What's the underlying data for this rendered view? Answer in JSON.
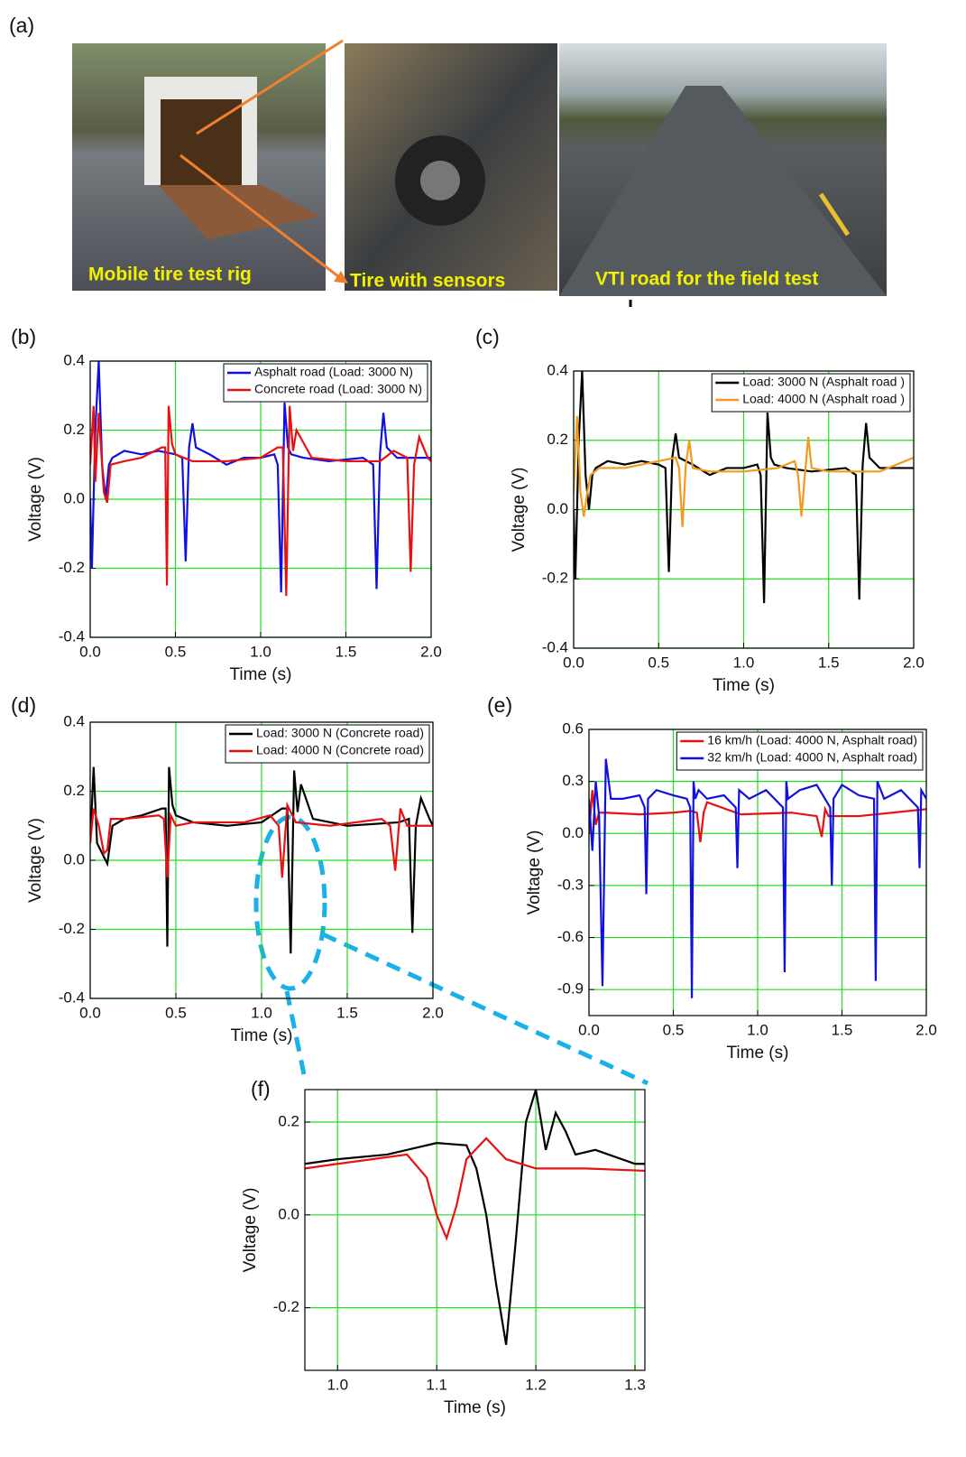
{
  "figure_a": {
    "label": "(a)",
    "captions": [
      "Mobile tire test rig",
      "Tire with sensors",
      "VTI road for the field test"
    ]
  },
  "chart_data": [
    {
      "type": "line",
      "label": "(b)",
      "x_label": "Time (s)",
      "y_label": "Voltage (V)",
      "xlim": [
        0,
        2
      ],
      "ylim": [
        -0.4,
        0.4
      ],
      "xticks": [
        {
          "value": 0,
          "label": "0.0"
        },
        0.5,
        {
          "value": 1,
          "label": "1.0"
        },
        1.5,
        {
          "value": 2,
          "label": "2.0"
        }
      ],
      "yticks": [
        -0.4,
        -0.2,
        {
          "value": 0,
          "label": "0.0"
        },
        0.2,
        0.4
      ],
      "grid": true,
      "legend": "upper right",
      "series": [
        {
          "name": "Asphalt road (Load: 3000 N)",
          "color": "#1010e0",
          "x": [
            0,
            0.01,
            0.03,
            0.05,
            0.07,
            0.09,
            0.11,
            0.13,
            0.2,
            0.3,
            0.4,
            0.5,
            0.54,
            0.56,
            0.58,
            0.6,
            0.62,
            0.7,
            0.8,
            0.9,
            1.0,
            1.08,
            1.1,
            1.12,
            1.14,
            1.16,
            1.18,
            1.25,
            1.4,
            1.6,
            1.66,
            1.68,
            1.7,
            1.72,
            1.74,
            1.8,
            1.9,
            2.0
          ],
          "values": [
            0.0,
            -0.2,
            0.2,
            0.4,
            0.1,
            0.0,
            0.1,
            0.12,
            0.14,
            0.13,
            0.14,
            0.13,
            0.12,
            -0.18,
            0.15,
            0.22,
            0.15,
            0.13,
            0.1,
            0.12,
            0.12,
            0.13,
            0.1,
            -0.27,
            0.28,
            0.15,
            0.13,
            0.12,
            0.11,
            0.12,
            0.1,
            -0.26,
            0.13,
            0.25,
            0.15,
            0.12,
            0.12,
            0.12
          ]
        },
        {
          "name": "Concrete road (Load: 3000 N)",
          "color": "#e81010",
          "x": [
            0,
            0.02,
            0.03,
            0.05,
            0.08,
            0.1,
            0.12,
            0.2,
            0.3,
            0.42,
            0.44,
            0.45,
            0.46,
            0.48,
            0.5,
            0.6,
            0.8,
            1.0,
            1.1,
            1.13,
            1.15,
            1.17,
            1.19,
            1.21,
            1.3,
            1.5,
            1.7,
            1.78,
            1.86,
            1.88,
            1.9,
            1.93,
            1.98,
            2.0
          ],
          "values": [
            0.1,
            0.27,
            0.05,
            0.25,
            0.02,
            -0.01,
            0.1,
            0.11,
            0.12,
            0.15,
            0.15,
            -0.25,
            0.27,
            0.16,
            0.13,
            0.11,
            0.11,
            0.12,
            0.15,
            0.15,
            -0.28,
            0.27,
            0.14,
            0.2,
            0.12,
            0.11,
            0.11,
            0.14,
            0.12,
            -0.21,
            0.1,
            0.18,
            0.12,
            0.11
          ]
        }
      ]
    },
    {
      "type": "line",
      "label": "(c)",
      "x_label": "Time (s)",
      "y_label": "Voltage (V)",
      "xlim": [
        0,
        2
      ],
      "ylim": [
        -0.4,
        0.4
      ],
      "xticks": [
        {
          "value": 0,
          "label": "0.0"
        },
        0.5,
        {
          "value": 1,
          "label": "1.0"
        },
        1.5,
        {
          "value": 2,
          "label": "2.0"
        }
      ],
      "yticks": [
        -0.4,
        -0.2,
        {
          "value": 0,
          "label": "0.0"
        },
        0.2,
        0.4
      ],
      "grid": true,
      "legend": "upper right",
      "series": [
        {
          "name": "Load: 3000 N (Asphalt road )",
          "color": "#000000",
          "x": [
            0,
            0.01,
            0.03,
            0.05,
            0.07,
            0.09,
            0.11,
            0.13,
            0.2,
            0.3,
            0.4,
            0.5,
            0.54,
            0.56,
            0.58,
            0.6,
            0.62,
            0.7,
            0.8,
            0.9,
            1.0,
            1.08,
            1.1,
            1.12,
            1.14,
            1.16,
            1.18,
            1.25,
            1.4,
            1.6,
            1.66,
            1.68,
            1.7,
            1.72,
            1.74,
            1.8,
            1.9,
            2.0
          ],
          "values": [
            0.0,
            -0.2,
            0.2,
            0.4,
            0.1,
            0.0,
            0.1,
            0.12,
            0.14,
            0.13,
            0.14,
            0.13,
            0.12,
            -0.18,
            0.15,
            0.22,
            0.15,
            0.13,
            0.1,
            0.12,
            0.12,
            0.13,
            0.1,
            -0.27,
            0.28,
            0.15,
            0.13,
            0.12,
            0.11,
            0.12,
            0.1,
            -0.26,
            0.13,
            0.25,
            0.15,
            0.12,
            0.12,
            0.12
          ]
        },
        {
          "name": "Load: 4000 N (Asphalt road )",
          "color": "#f39a1e",
          "x": [
            0,
            0.02,
            0.04,
            0.06,
            0.08,
            0.1,
            0.15,
            0.3,
            0.5,
            0.6,
            0.62,
            0.64,
            0.66,
            0.68,
            0.7,
            0.8,
            1.0,
            1.2,
            1.3,
            1.32,
            1.34,
            1.36,
            1.38,
            1.4,
            1.5,
            1.8,
            2.0
          ],
          "values": [
            0.05,
            0.27,
            0.05,
            -0.02,
            0.05,
            0.1,
            0.12,
            0.12,
            0.14,
            0.15,
            0.12,
            -0.05,
            0.13,
            0.2,
            0.12,
            0.11,
            0.11,
            0.12,
            0.14,
            0.1,
            -0.02,
            0.1,
            0.21,
            0.12,
            0.11,
            0.11,
            0.15
          ]
        }
      ]
    },
    {
      "type": "line",
      "label": "(d)",
      "x_label": "Time (s)",
      "y_label": "Voltage (V)",
      "xlim": [
        0,
        2
      ],
      "ylim": [
        -0.4,
        0.4
      ],
      "xticks": [
        {
          "value": 0,
          "label": "0.0"
        },
        0.5,
        {
          "value": 1,
          "label": "1.0"
        },
        1.5,
        {
          "value": 2,
          "label": "2.0"
        }
      ],
      "yticks": [
        -0.4,
        -0.2,
        {
          "value": 0,
          "label": "0.0"
        },
        0.2,
        0.4
      ],
      "grid": true,
      "legend": "upper right",
      "series": [
        {
          "name": "Load: 3000 N (Concrete road)",
          "color": "#000000",
          "x": [
            0,
            0.02,
            0.04,
            0.07,
            0.1,
            0.13,
            0.2,
            0.3,
            0.42,
            0.44,
            0.45,
            0.46,
            0.48,
            0.5,
            0.6,
            0.8,
            1.0,
            1.12,
            1.15,
            1.17,
            1.19,
            1.21,
            1.23,
            1.3,
            1.5,
            1.8,
            1.86,
            1.88,
            1.9,
            1.93,
            1.98,
            2.0
          ],
          "values": [
            0.05,
            0.27,
            0.05,
            0.02,
            -0.01,
            0.1,
            0.12,
            0.13,
            0.15,
            0.15,
            -0.25,
            0.27,
            0.16,
            0.13,
            0.11,
            0.1,
            0.11,
            0.15,
            0.15,
            -0.27,
            0.26,
            0.14,
            0.22,
            0.12,
            0.1,
            0.11,
            0.12,
            -0.21,
            0.1,
            0.18,
            0.12,
            0.1
          ]
        },
        {
          "name": "Load: 4000 N (Concrete road)",
          "color": "#e81010",
          "x": [
            0,
            0.02,
            0.05,
            0.08,
            0.1,
            0.12,
            0.2,
            0.4,
            0.43,
            0.45,
            0.47,
            0.5,
            0.6,
            0.9,
            1.05,
            1.1,
            1.12,
            1.15,
            1.2,
            1.4,
            1.7,
            1.75,
            1.78,
            1.81,
            1.85,
            2.0
          ],
          "values": [
            0.05,
            0.15,
            0.1,
            0.02,
            0.03,
            0.12,
            0.12,
            0.13,
            0.12,
            -0.05,
            0.13,
            0.1,
            0.11,
            0.11,
            0.13,
            0.1,
            -0.05,
            0.16,
            0.11,
            0.1,
            0.12,
            0.1,
            -0.03,
            0.15,
            0.1,
            0.1
          ]
        }
      ]
    },
    {
      "type": "line",
      "label": "(e)",
      "x_label": "Time (s)",
      "y_label": "Voltage (V)",
      "xlim": [
        0,
        2
      ],
      "ylim": [
        -1.05,
        0.6
      ],
      "xticks": [
        {
          "value": 0,
          "label": "0.0"
        },
        0.5,
        {
          "value": 1,
          "label": "1.0"
        },
        1.5,
        {
          "value": 2,
          "label": "2.0"
        }
      ],
      "yticks": [
        -0.9,
        -0.6,
        -0.3,
        {
          "value": 0,
          "label": "0.0"
        },
        0.3,
        0.6
      ],
      "grid": true,
      "legend": "upper right",
      "series": [
        {
          "name": "16 km/h (Load: 4000 N, Asphalt road)",
          "color": "#e81010",
          "x": [
            0,
            0.02,
            0.04,
            0.06,
            0.1,
            0.3,
            0.5,
            0.6,
            0.64,
            0.66,
            0.68,
            0.7,
            0.9,
            1.2,
            1.35,
            1.38,
            1.4,
            1.42,
            1.6,
            2.0
          ],
          "values": [
            0.0,
            0.25,
            0.05,
            0.12,
            0.12,
            0.11,
            0.12,
            0.13,
            0.12,
            -0.05,
            0.12,
            0.18,
            0.11,
            0.12,
            0.1,
            -0.02,
            0.14,
            0.1,
            0.1,
            0.14
          ]
        },
        {
          "name": "32 km/h (Load: 4000 N, Asphalt road)",
          "color": "#1010e0",
          "x": [
            0,
            0.02,
            0.04,
            0.06,
            0.08,
            0.1,
            0.13,
            0.2,
            0.3,
            0.33,
            0.34,
            0.35,
            0.4,
            0.5,
            0.58,
            0.6,
            0.61,
            0.62,
            0.63,
            0.65,
            0.7,
            0.8,
            0.87,
            0.88,
            0.89,
            0.95,
            1.05,
            1.15,
            1.16,
            1.17,
            1.18,
            1.25,
            1.35,
            1.43,
            1.44,
            1.45,
            1.5,
            1.6,
            1.69,
            1.7,
            1.71,
            1.75,
            1.85,
            1.95,
            1.96,
            1.97,
            2.0
          ],
          "values": [
            0.2,
            -0.1,
            0.3,
            0.1,
            -0.88,
            0.43,
            0.2,
            0.2,
            0.22,
            0.15,
            -0.35,
            0.2,
            0.25,
            0.22,
            0.2,
            0.15,
            -0.95,
            0.3,
            0.2,
            0.25,
            0.2,
            0.22,
            0.15,
            -0.2,
            0.25,
            0.2,
            0.25,
            0.15,
            -0.8,
            0.3,
            0.2,
            0.25,
            0.28,
            0.15,
            -0.3,
            0.2,
            0.28,
            0.22,
            0.2,
            -0.85,
            0.3,
            0.2,
            0.25,
            0.15,
            -0.2,
            0.25,
            0.2
          ]
        }
      ]
    },
    {
      "type": "line",
      "label": "(f)",
      "x_label": "Time (s)",
      "y_label": "Voltage (V)",
      "xlim": [
        0.967,
        1.31
      ],
      "ylim": [
        -0.335,
        0.27
      ],
      "xticks": [
        {
          "value": 1,
          "label": "1.0"
        },
        1.1,
        1.2,
        1.3
      ],
      "yticks": [
        -0.2,
        {
          "value": 0,
          "label": "0.0"
        },
        0.2
      ],
      "grid": true,
      "series": [
        {
          "color": "#000000",
          "x": [
            0.967,
            1.0,
            1.05,
            1.1,
            1.13,
            1.14,
            1.15,
            1.16,
            1.17,
            1.18,
            1.19,
            1.2,
            1.21,
            1.22,
            1.23,
            1.24,
            1.26,
            1.3,
            1.31
          ],
          "values": [
            0.11,
            0.12,
            0.13,
            0.155,
            0.15,
            0.1,
            0.0,
            -0.15,
            -0.28,
            -0.05,
            0.2,
            0.27,
            0.14,
            0.22,
            0.18,
            0.13,
            0.14,
            0.11,
            0.11
          ]
        },
        {
          "color": "#e81010",
          "x": [
            0.967,
            1.0,
            1.07,
            1.09,
            1.1,
            1.11,
            1.12,
            1.13,
            1.15,
            1.17,
            1.2,
            1.25,
            1.31
          ],
          "values": [
            0.1,
            0.11,
            0.13,
            0.08,
            0.0,
            -0.05,
            0.02,
            0.12,
            0.165,
            0.12,
            0.1,
            0.1,
            0.095
          ]
        }
      ]
    }
  ]
}
